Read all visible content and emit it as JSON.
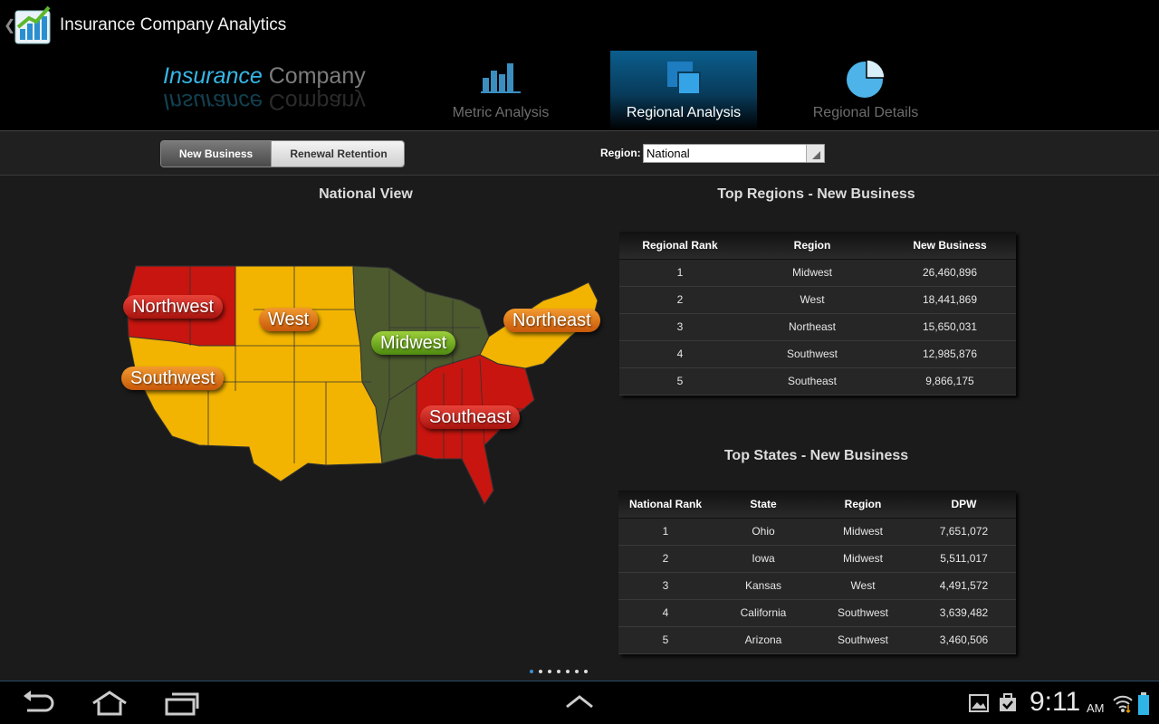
{
  "app": {
    "title": "Insurance Company Analytics"
  },
  "logo": {
    "word1": "Insurance",
    "word2": "Company"
  },
  "nav": {
    "tabs": [
      {
        "label": "Metric Analysis",
        "active": false
      },
      {
        "label": "Regional Analysis",
        "active": true
      },
      {
        "label": "Regional Details",
        "active": false
      }
    ]
  },
  "toolbar": {
    "segments": [
      "New Business",
      "Renewal Retention"
    ],
    "selected_segment": "New Business",
    "region_label": "Region:",
    "region_value": "National"
  },
  "map": {
    "title": "National View",
    "regions": [
      {
        "name": "Northwest",
        "color": "#c8150f"
      },
      {
        "name": "West",
        "color": "#f2b400"
      },
      {
        "name": "Midwest",
        "color": "#4d5a2e"
      },
      {
        "name": "Northeast",
        "color": "#f2b400"
      },
      {
        "name": "Southwest",
        "color": "#f2b400"
      },
      {
        "name": "Southeast",
        "color": "#c8150f"
      }
    ]
  },
  "top_regions": {
    "title": "Top Regions - New Business",
    "headers": [
      "Regional Rank",
      "Region",
      "New Business"
    ],
    "rows": [
      [
        "1",
        "Midwest",
        "26,460,896"
      ],
      [
        "2",
        "West",
        "18,441,869"
      ],
      [
        "3",
        "Northeast",
        "15,650,031"
      ],
      [
        "4",
        "Southwest",
        "12,985,876"
      ],
      [
        "5",
        "Southeast",
        "9,866,175"
      ]
    ]
  },
  "top_states": {
    "title": "Top States - New Business",
    "headers": [
      "National Rank",
      "State",
      "Region",
      "DPW"
    ],
    "rows": [
      [
        "1",
        "Ohio",
        "Midwest",
        "7,651,072"
      ],
      [
        "2",
        "Iowa",
        "Midwest",
        "5,511,017"
      ],
      [
        "3",
        "Kansas",
        "West",
        "4,491,572"
      ],
      [
        "4",
        "California",
        "Southwest",
        "3,639,482"
      ],
      [
        "5",
        "Arizona",
        "Southwest",
        "3,460,506"
      ]
    ]
  },
  "pager": {
    "pages": 7,
    "current": 1
  },
  "status": {
    "time": "9:11",
    "ampm": "AM"
  },
  "colors": {
    "accent": "#0b5e8d",
    "red": "#c8150f",
    "yellow": "#f2b400",
    "green": "#4d5a2e"
  }
}
